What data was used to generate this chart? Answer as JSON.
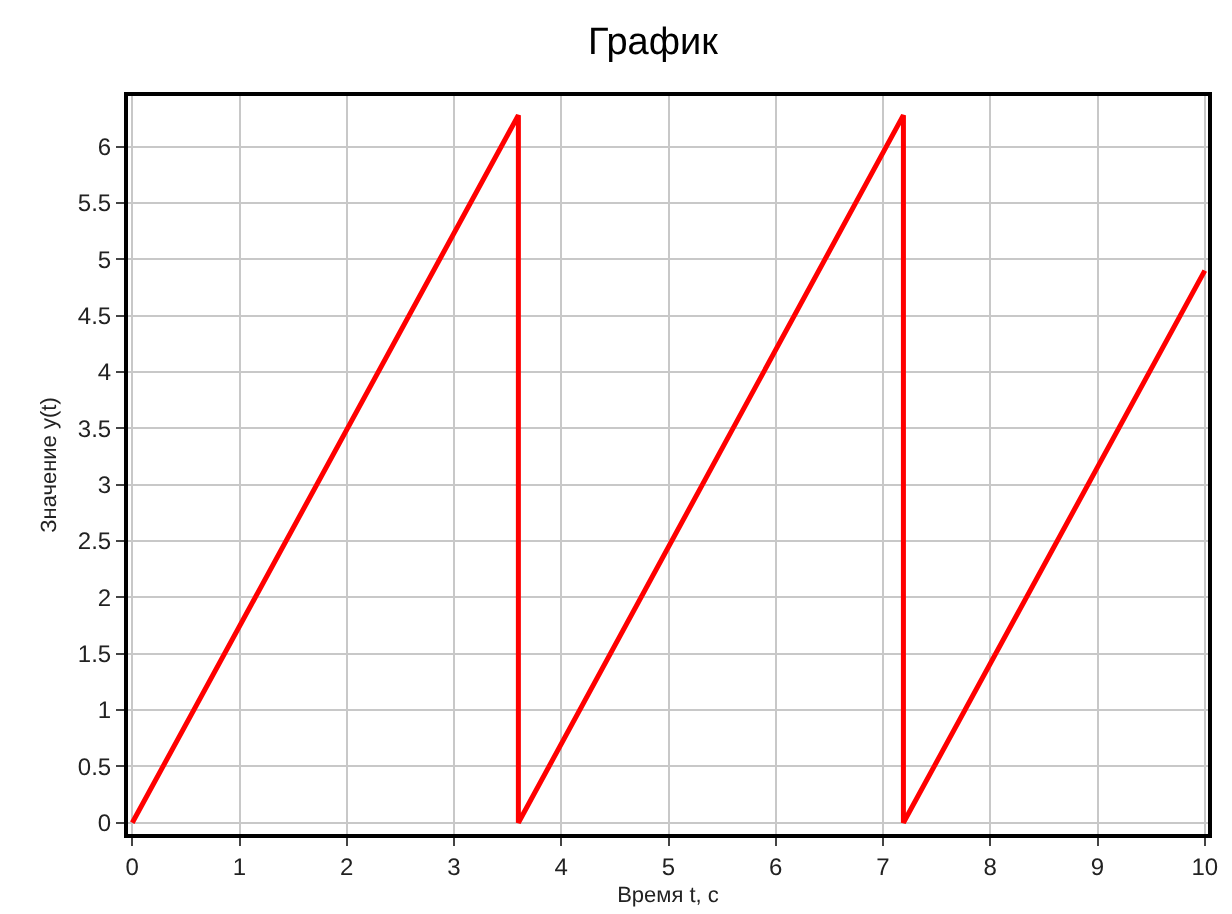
{
  "chart_data": {
    "type": "line",
    "title": "График",
    "xlabel": "Время t, с",
    "ylabel": "Значение y(t)",
    "x": [
      0,
      3.6,
      3.6,
      7.19,
      7.19,
      10
    ],
    "series": [
      {
        "color": "#ff0000",
        "values": [
          0,
          6.28,
          0,
          6.28,
          0,
          4.9
        ]
      }
    ],
    "xlim": [
      -0.04,
      10.03
    ],
    "ylim": [
      -0.1,
      6.45
    ],
    "xticks": [
      0,
      1,
      2,
      3,
      4,
      5,
      6,
      7,
      8,
      9,
      10
    ],
    "yticks": [
      0,
      0.5,
      1,
      1.5,
      2,
      2.5,
      3,
      3.5,
      4,
      4.5,
      5,
      5.5,
      6
    ],
    "grid": true,
    "marker": "none",
    "line_style": "solid"
  }
}
